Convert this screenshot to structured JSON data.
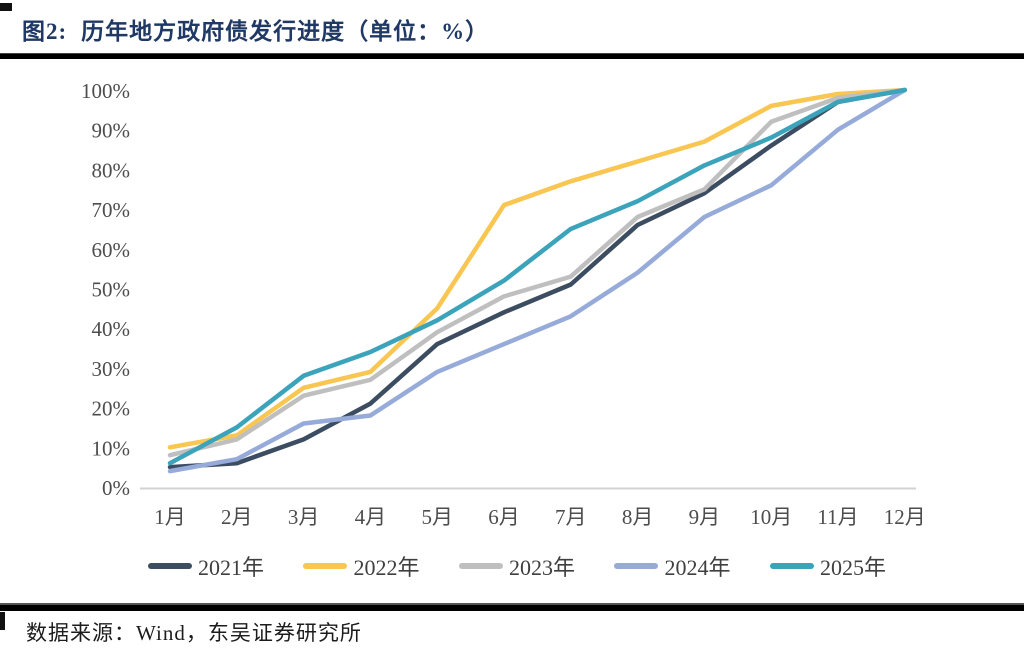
{
  "figure": {
    "title_prefix": "图2:",
    "title_text": "历年地方政府债发行进度（单位：%）",
    "title_color": "#1f3864"
  },
  "chart_data": {
    "type": "line",
    "title": "历年地方政府债发行进度（单位：%）",
    "x": [
      "1月",
      "2月",
      "3月",
      "4月",
      "5月",
      "6月",
      "7月",
      "8月",
      "9月",
      "10月",
      "11月",
      "12月"
    ],
    "y_ticks": [
      "0%",
      "10%",
      "20%",
      "30%",
      "40%",
      "50%",
      "60%",
      "70%",
      "80%",
      "90%",
      "100%"
    ],
    "ylim": [
      0,
      100
    ],
    "grid": false,
    "legend_position": "bottom",
    "axis_label_color": "#4d4d4d",
    "axis_line_color": "#d2d2d2",
    "series": [
      {
        "name": "2021年",
        "color": "#3d4d61",
        "values": [
          5,
          6,
          12,
          21,
          36,
          44,
          51,
          66,
          74,
          86,
          97,
          100
        ]
      },
      {
        "name": "2022年",
        "color": "#f8c651",
        "values": [
          10,
          13,
          25,
          29,
          45,
          71,
          77,
          82,
          87,
          96,
          99,
          100
        ]
      },
      {
        "name": "2023年",
        "color": "#bfbfbf",
        "values": [
          8,
          12,
          23,
          27,
          39,
          48,
          53,
          68,
          75,
          92,
          98,
          100
        ]
      },
      {
        "name": "2024年",
        "color": "#96abd9",
        "values": [
          4,
          7,
          16,
          18,
          29,
          36,
          43,
          54,
          68,
          76,
          90,
          100
        ]
      },
      {
        "name": "2025年",
        "color": "#3ba3ba",
        "values": [
          6,
          15,
          28,
          34,
          42,
          52,
          65,
          72,
          81,
          88,
          97,
          100
        ]
      }
    ]
  },
  "footer": {
    "source_text": "数据来源：Wind，东吴证券研究所"
  }
}
